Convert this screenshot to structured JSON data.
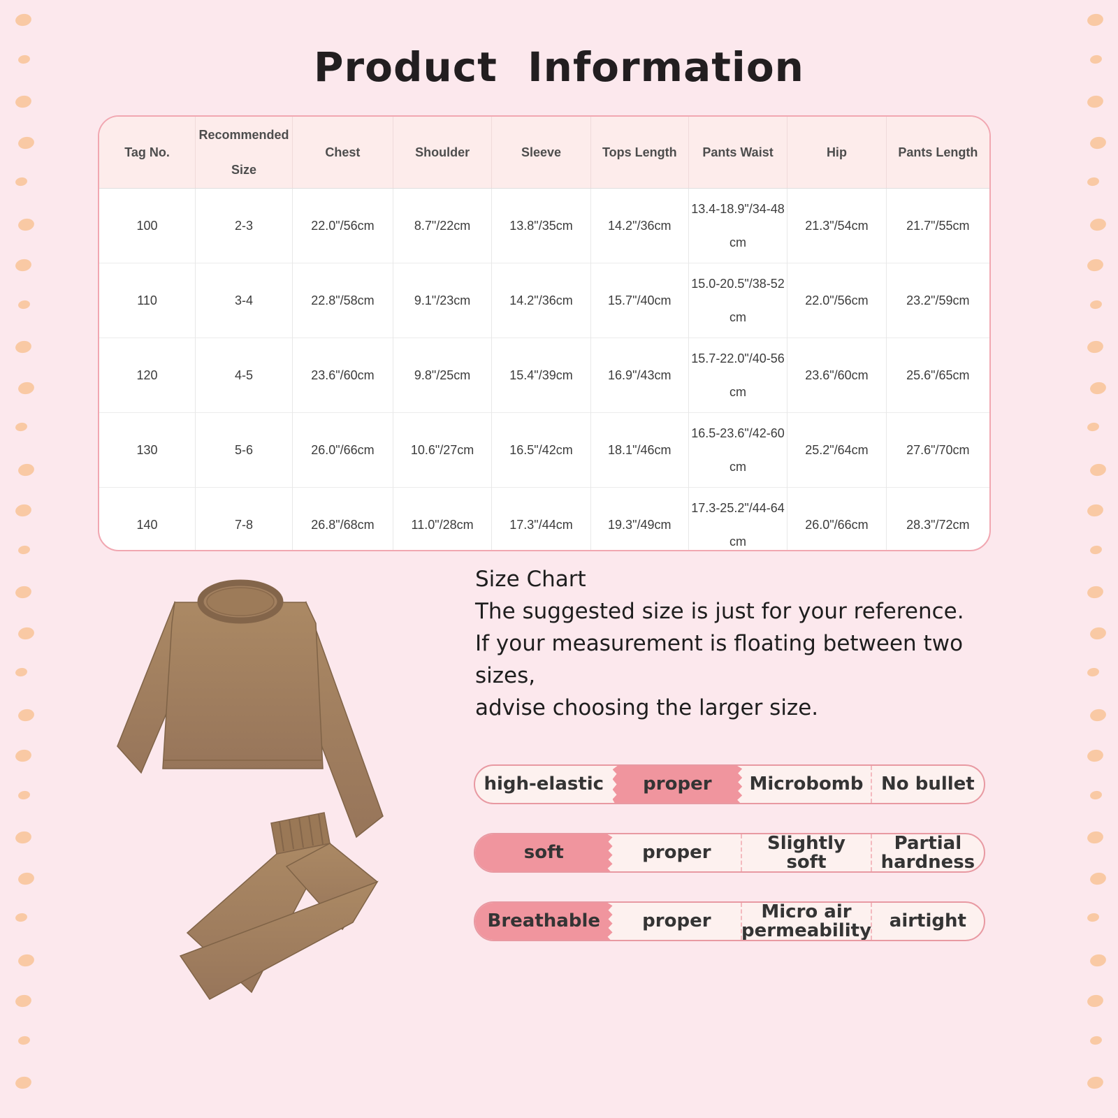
{
  "page": {
    "title": "Product Information",
    "background_color": "#fce8ed"
  },
  "decor": {
    "dot_color": "#f9c9a4"
  },
  "size_table": {
    "columns": [
      "Tag No.",
      "Recommended Size",
      "Chest",
      "Shoulder",
      "Sleeve",
      "Tops Length",
      "Pants Waist",
      "Hip",
      "Pants Length"
    ],
    "rows": [
      [
        "100",
        "2-3",
        "22.0\"/56cm",
        "8.7\"/22cm",
        "13.8\"/35cm",
        "14.2\"/36cm",
        "13.4-18.9\"/34-48\ncm",
        "21.3\"/54cm",
        "21.7\"/55cm"
      ],
      [
        "110",
        "3-4",
        "22.8\"/58cm",
        "9.1\"/23cm",
        "14.2\"/36cm",
        "15.7\"/40cm",
        "15.0-20.5\"/38-52\ncm",
        "22.0\"/56cm",
        "23.2\"/59cm"
      ],
      [
        "120",
        "4-5",
        "23.6\"/60cm",
        "9.8\"/25cm",
        "15.4\"/39cm",
        "16.9\"/43cm",
        "15.7-22.0\"/40-56\ncm",
        "23.6\"/60cm",
        "25.6\"/65cm"
      ],
      [
        "130",
        "5-6",
        "26.0\"/66cm",
        "10.6\"/27cm",
        "16.5\"/42cm",
        "18.1\"/46cm",
        "16.5-23.6\"/42-60\ncm",
        "25.2\"/64cm",
        "27.6\"/70cm"
      ],
      [
        "140",
        "7-8",
        "26.8\"/68cm",
        "11.0\"/28cm",
        "17.3\"/44cm",
        "19.3\"/49cm",
        "17.3-25.2\"/44-64\ncm",
        "26.0\"/66cm",
        "28.3\"/72cm"
      ]
    ]
  },
  "size_note": {
    "lines": [
      "Size Chart",
      "The suggested size is just for your reference.",
      "If your measurement is floating between two sizes,",
      "advise choosing the larger size."
    ]
  },
  "product_image": {
    "description": "brown long-sleeve pajama set: crew-neck top and pants",
    "garment_color": "#a28060"
  },
  "attribute_bars": [
    {
      "name": "elasticity",
      "segments": [
        "high-elastic",
        "proper",
        "Microbomb",
        "No bullet"
      ],
      "highlighted": "proper",
      "highlight_index": 1
    },
    {
      "name": "softness",
      "segments": [
        "soft",
        "proper",
        "Slightly soft",
        "Partial hardness"
      ],
      "highlighted": "soft",
      "highlight_index": 0
    },
    {
      "name": "breathability",
      "segments": [
        "Breathable",
        "proper",
        "Micro air permeability",
        "airtight"
      ],
      "highlighted": "Breathable",
      "highlight_index": 0
    }
  ],
  "colors": {
    "bar_highlight": "#f0959e",
    "bar_background": "#fdf1ef",
    "bar_border": "#e899a2",
    "table_border": "#f1a7b1",
    "table_header_background": "#fdeceb"
  }
}
